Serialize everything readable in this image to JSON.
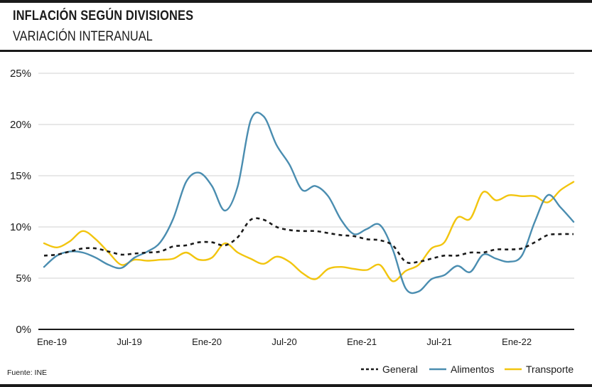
{
  "header": {
    "title": "INFLACIÓN SEGÚN DIVISIONES",
    "subtitle": "VARIACIÓN INTERANUAL"
  },
  "footer": {
    "source": "Fuente: INE"
  },
  "colors": {
    "general": "#1a1a1a",
    "alimentos": "#4a8db0",
    "transporte": "#f2c50f",
    "axis": "#1a1a1a"
  },
  "chart_data": {
    "type": "line",
    "title": "INFLACIÓN SEGÚN DIVISIONES",
    "subtitle": "VARIACIÓN INTERANUAL",
    "xlabel": "",
    "ylabel": "",
    "ylim": [
      0,
      25
    ],
    "y_ticks": [
      "0%",
      "5%",
      "10%",
      "15%",
      "20%",
      "25%"
    ],
    "y_tick_values": [
      0,
      5,
      10,
      15,
      20,
      25
    ],
    "x_ticks": [
      "Ene-19",
      "Jul-19",
      "Ene-20",
      "Jul-20",
      "Ene-21",
      "Jul-21",
      "Ene-22"
    ],
    "x_tick_index": [
      0,
      6,
      12,
      18,
      24,
      30,
      36
    ],
    "x_count": 42,
    "grid": "horizontal",
    "legend_position": "bottom-right",
    "series": [
      {
        "key": "general",
        "name": "General",
        "style": "dashed",
        "values": [
          7.2,
          7.3,
          7.6,
          7.9,
          7.9,
          7.6,
          7.3,
          7.4,
          7.5,
          7.6,
          8.1,
          8.2,
          8.5,
          8.5,
          8.2,
          9.0,
          10.7,
          10.7,
          10.0,
          9.7,
          9.6,
          9.6,
          9.4,
          9.2,
          9.1,
          8.8,
          8.7,
          8.2,
          6.6,
          6.6,
          6.9,
          7.2,
          7.2,
          7.5,
          7.5,
          7.8,
          7.8,
          7.9,
          8.5,
          9.2,
          9.3,
          9.3
        ]
      },
      {
        "key": "alimentos",
        "name": "Alimentos",
        "style": "solid",
        "values": [
          6.1,
          7.2,
          7.6,
          7.5,
          7.0,
          6.3,
          6.0,
          7.0,
          7.6,
          8.5,
          10.8,
          14.4,
          15.3,
          14.0,
          11.6,
          14.0,
          20.4,
          20.8,
          18.0,
          16.1,
          13.6,
          14.0,
          13.0,
          10.7,
          9.3,
          9.8,
          10.2,
          7.8,
          4.0,
          3.7,
          4.9,
          5.3,
          6.2,
          5.6,
          7.3,
          6.9,
          6.6,
          7.2,
          10.5,
          13.1,
          11.9,
          10.5
        ]
      },
      {
        "key": "transporte",
        "name": "Transporte",
        "style": "solid",
        "values": [
          8.4,
          8.0,
          8.6,
          9.6,
          8.8,
          7.5,
          6.3,
          6.8,
          6.7,
          6.8,
          6.9,
          7.5,
          6.8,
          7.0,
          8.4,
          7.5,
          6.9,
          6.4,
          7.1,
          6.6,
          5.5,
          4.9,
          5.9,
          6.1,
          5.9,
          5.8,
          6.3,
          4.7,
          5.7,
          6.3,
          7.9,
          8.5,
          10.9,
          10.8,
          13.4,
          12.6,
          13.1,
          13.0,
          13.0,
          12.4,
          13.6,
          14.4
        ]
      }
    ]
  }
}
